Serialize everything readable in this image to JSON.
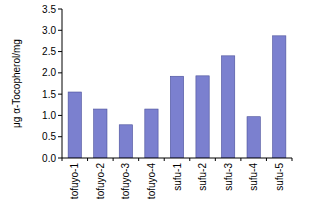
{
  "chart_data": {
    "type": "bar",
    "y_label": "μg α-Tocopherol/mg",
    "categories": [
      "tofuyo-1",
      "tofuyo-2",
      "tofuyo-3",
      "tofuyo-4",
      "sufu-1",
      "sufu-2",
      "sufu-3",
      "sufu-4",
      "sufu-5"
    ],
    "values": [
      1.55,
      1.15,
      0.78,
      1.15,
      1.92,
      1.93,
      2.4,
      0.97,
      2.87
    ],
    "color": "#7b80cf",
    "ylim": [
      0,
      3.5
    ],
    "yticks": [
      {
        "value": 0,
        "label": "0.0"
      },
      0.5,
      {
        "value": 1,
        "label": "1.0"
      },
      1.5,
      {
        "value": 2,
        "label": "2.0"
      },
      2.5,
      {
        "value": 3,
        "label": "3.0"
      },
      3.5
    ],
    "grid": false
  }
}
